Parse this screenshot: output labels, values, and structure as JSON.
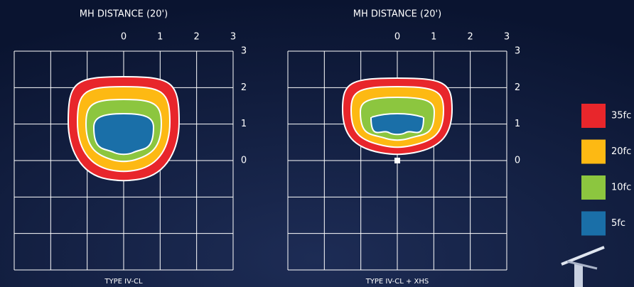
{
  "panels": [
    {
      "title": "MH DISTANCE (20')",
      "x_labels": [
        "0",
        "1",
        "2",
        "3"
      ],
      "y_labels": [
        "3",
        "2",
        "1",
        "0"
      ],
      "caption": "TYPE IV-CL"
    },
    {
      "title": "MH DISTANCE (20')",
      "x_labels": [
        "0",
        "1",
        "2",
        "3"
      ],
      "y_labels": [
        "3",
        "2",
        "1",
        "0"
      ],
      "caption": "TYPE IV-CL + XHS"
    }
  ],
  "legend": [
    {
      "label": "35fc",
      "color": "#e8262b"
    },
    {
      "label": "20fc",
      "color": "#fdb913"
    },
    {
      "label": "10fc",
      "color": "#8cc63f"
    },
    {
      "label": "5fc",
      "color": "#1a6fa8"
    }
  ]
}
